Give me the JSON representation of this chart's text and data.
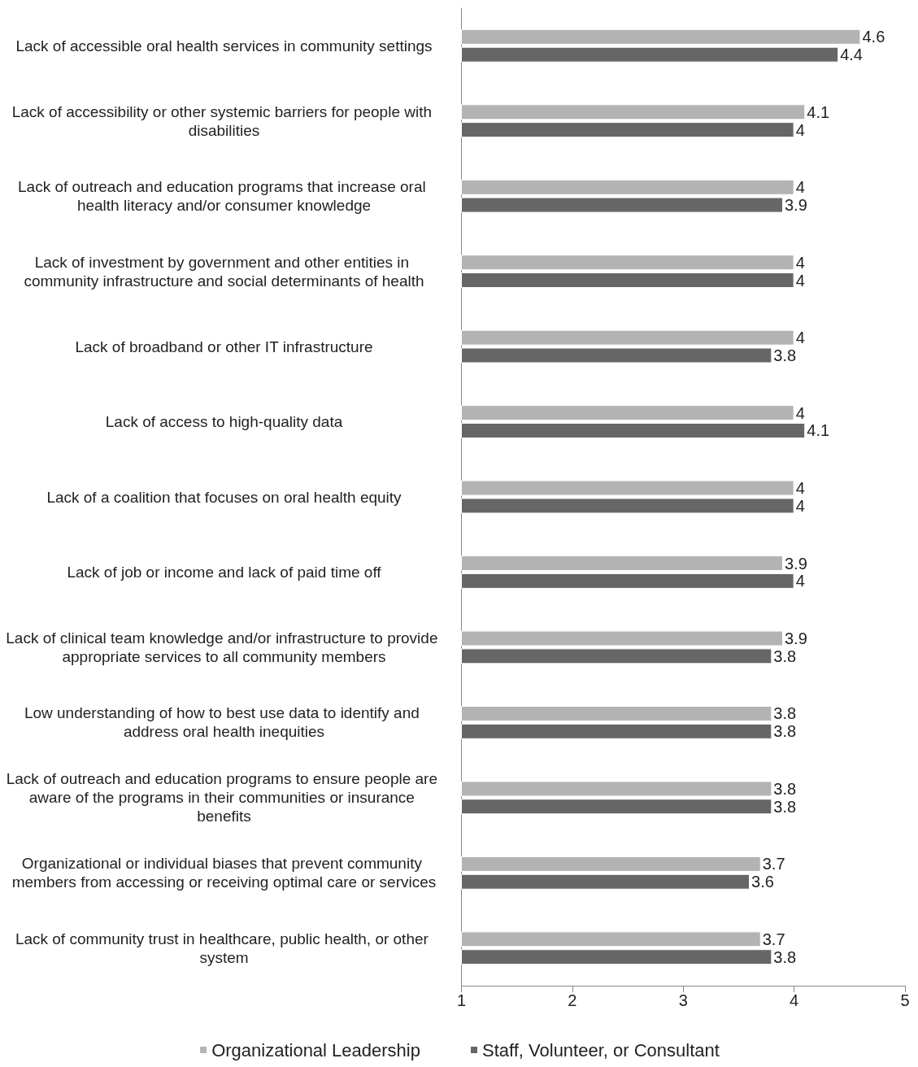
{
  "chart_data": {
    "type": "bar",
    "orientation": "horizontal",
    "categories": [
      "Lack of accessible oral health services in community settings",
      "Lack of accessibility or other systemic barriers for people with disabilities",
      "Lack of outreach and education programs that increase oral health literacy and/or consumer knowledge",
      "Lack of investment by government and other entities in community infrastructure and social determinants of health",
      "Lack of broadband or other IT infrastructure",
      "Lack of access to high-quality data",
      "Lack of a coalition that focuses on oral health equity",
      "Lack of job or income and lack of paid time off",
      "Lack of clinical team knowledge and/or infrastructure to provide appropriate services to all community members",
      "Low understanding of how to best use data to identify and address oral health inequities",
      "Lack of outreach and education programs to ensure people are aware of the programs in their communities or insurance benefits",
      "Organizational or individual biases that prevent community members from accessing or receiving optimal care or services",
      "Lack of community trust in healthcare, public health, or other system"
    ],
    "series": [
      {
        "name": "Organizational Leadership",
        "color": "#b3b3b3",
        "values": [
          4.6,
          4.1,
          4,
          4,
          4,
          4,
          4,
          3.9,
          3.9,
          3.8,
          3.8,
          3.7,
          3.7
        ]
      },
      {
        "name": "Staff, Volunteer, or Consultant",
        "color": "#666666",
        "values": [
          4.4,
          4,
          3.9,
          4,
          3.8,
          4.1,
          4,
          4,
          3.8,
          3.8,
          3.8,
          3.6,
          3.8
        ]
      }
    ],
    "xlim": [
      1,
      5
    ],
    "xticks": [
      1,
      2,
      3,
      4,
      5
    ],
    "data_labels": true,
    "legend": "bottom",
    "grid": false
  }
}
